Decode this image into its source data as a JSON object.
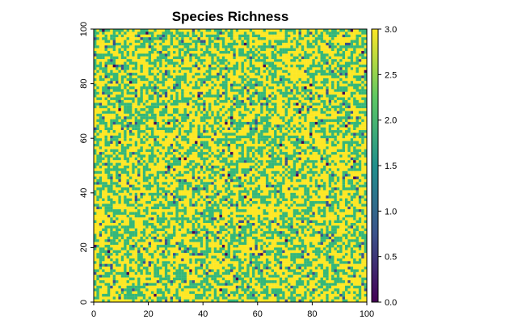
{
  "chart_data": {
    "type": "heatmap",
    "title": "Species Richness",
    "xlabel": "",
    "ylabel": "",
    "xlim": [
      0,
      100
    ],
    "ylim": [
      0,
      100
    ],
    "grid": false,
    "x_ticks": [
      "0",
      "20",
      "40",
      "60",
      "80",
      "100"
    ],
    "y_ticks": [
      "0",
      "20",
      "40",
      "60",
      "80",
      "100"
    ],
    "cells_x": 100,
    "cells_y": 100,
    "value_distribution": [
      {
        "value": 3,
        "share": 0.52
      },
      {
        "value": 2,
        "share": 0.44
      },
      {
        "value": 1,
        "share": 0.035
      },
      {
        "value": 0,
        "share": 0.005
      }
    ],
    "colorbar": {
      "min": 0,
      "max": 3,
      "ticks": [
        "0.0",
        "0.5",
        "1.0",
        "1.5",
        "2.0",
        "2.5",
        "3.0"
      ],
      "colors": [
        "#440154",
        "#3b528b",
        "#21908c",
        "#5dc863",
        "#fde725"
      ]
    },
    "value_colors": {
      "0": "#440154",
      "1": "#3b528b",
      "2": "#35b779",
      "3": "#fde725"
    }
  }
}
